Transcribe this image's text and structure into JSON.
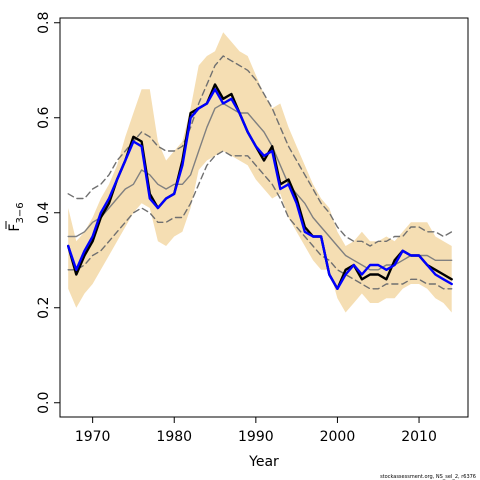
{
  "chart_data": {
    "type": "line",
    "xlabel": "Year",
    "ylabel": "F",
    "ylabel_subscript": "3−6",
    "x_ticks": [
      1970,
      1980,
      1990,
      2000,
      2010
    ],
    "y_ticks": [
      "0.0",
      "0.2",
      "0.4",
      "0.6",
      "0.8"
    ],
    "xlim": [
      1966,
      2016
    ],
    "ylim": [
      -0.03,
      0.81
    ],
    "grid": false,
    "legend": "none",
    "credit": "stockassessment.org, NS_sel_2, r6376",
    "years": [
      1967,
      1968,
      1969,
      1970,
      1971,
      1972,
      1973,
      1974,
      1975,
      1976,
      1977,
      1978,
      1979,
      1980,
      1981,
      1982,
      1983,
      1984,
      1985,
      1986,
      1987,
      1988,
      1989,
      1990,
      1991,
      1992,
      1993,
      1994,
      1995,
      1996,
      1997,
      1998,
      1999,
      2000,
      2001,
      2002,
      2003,
      2004,
      2005,
      2006,
      2007,
      2008,
      2009,
      2010,
      2011,
      2012,
      2013,
      2014
    ],
    "band": {
      "color": "#f5deb3",
      "upper": [
        0.41,
        0.34,
        0.36,
        0.39,
        0.43,
        0.46,
        0.5,
        0.56,
        0.61,
        0.66,
        0.66,
        0.55,
        0.51,
        0.53,
        0.55,
        0.62,
        0.71,
        0.73,
        0.74,
        0.78,
        0.76,
        0.74,
        0.73,
        0.69,
        0.65,
        0.62,
        0.63,
        0.58,
        0.54,
        0.5,
        0.46,
        0.43,
        0.41,
        0.36,
        0.33,
        0.34,
        0.36,
        0.34,
        0.34,
        0.35,
        0.34,
        0.36,
        0.38,
        0.38,
        0.38,
        0.35,
        0.34,
        0.33
      ],
      "lower": [
        0.24,
        0.2,
        0.23,
        0.25,
        0.28,
        0.31,
        0.34,
        0.37,
        0.4,
        0.42,
        0.41,
        0.34,
        0.33,
        0.35,
        0.36,
        0.41,
        0.49,
        0.51,
        0.52,
        0.53,
        0.52,
        0.51,
        0.5,
        0.47,
        0.45,
        0.43,
        0.44,
        0.39,
        0.36,
        0.33,
        0.3,
        0.28,
        0.28,
        0.22,
        0.19,
        0.21,
        0.23,
        0.21,
        0.21,
        0.22,
        0.22,
        0.24,
        0.25,
        0.25,
        0.24,
        0.22,
        0.21,
        0.19
      ]
    },
    "series": [
      {
        "color": "#000000",
        "width": 2.4,
        "dash": "",
        "values": [
          0.33,
          0.27,
          0.31,
          0.34,
          0.39,
          0.42,
          0.47,
          0.51,
          0.56,
          0.55,
          0.44,
          0.41,
          0.43,
          0.44,
          0.51,
          0.61,
          0.62,
          0.63,
          0.67,
          0.64,
          0.65,
          0.61,
          0.57,
          0.54,
          0.51,
          0.54,
          0.46,
          0.47,
          0.43,
          0.37,
          0.35,
          0.35,
          0.27,
          0.24,
          0.28,
          0.29,
          0.26,
          0.27,
          0.27,
          0.26,
          0.3,
          0.32,
          0.31,
          0.31,
          0.29,
          0.28,
          0.27,
          0.26
        ]
      },
      {
        "color": "#0000ff",
        "width": 2.4,
        "dash": "",
        "values": [
          0.33,
          0.28,
          0.32,
          0.35,
          0.4,
          0.43,
          0.47,
          0.51,
          0.55,
          0.54,
          0.43,
          0.41,
          0.43,
          0.44,
          0.5,
          0.6,
          0.62,
          0.63,
          0.66,
          0.63,
          0.64,
          0.61,
          0.57,
          0.54,
          0.52,
          0.53,
          0.45,
          0.46,
          0.42,
          0.36,
          0.35,
          0.35,
          0.27,
          0.24,
          0.27,
          0.29,
          0.27,
          0.29,
          0.29,
          0.28,
          0.29,
          0.32,
          0.31,
          0.31,
          0.29,
          0.27,
          0.26,
          0.25
        ]
      },
      {
        "color": "#808080",
        "width": 1.4,
        "dash": "",
        "values": [
          0.35,
          0.35,
          0.36,
          0.38,
          0.39,
          0.41,
          0.43,
          0.45,
          0.46,
          0.49,
          0.48,
          0.46,
          0.45,
          0.46,
          0.46,
          0.48,
          0.53,
          0.58,
          0.62,
          0.63,
          0.62,
          0.61,
          0.61,
          0.59,
          0.57,
          0.54,
          0.5,
          0.46,
          0.44,
          0.42,
          0.39,
          0.37,
          0.35,
          0.33,
          0.31,
          0.3,
          0.29,
          0.28,
          0.28,
          0.29,
          0.29,
          0.3,
          0.31,
          0.31,
          0.31,
          0.3,
          0.3,
          0.3
        ]
      },
      {
        "color": "#707070",
        "width": 1.4,
        "dash": "6,4",
        "values": [
          0.44,
          0.43,
          0.43,
          0.45,
          0.46,
          0.48,
          0.51,
          0.53,
          0.55,
          0.57,
          0.56,
          0.54,
          0.53,
          0.53,
          0.54,
          0.58,
          0.63,
          0.67,
          0.71,
          0.73,
          0.72,
          0.71,
          0.7,
          0.68,
          0.65,
          0.62,
          0.58,
          0.54,
          0.51,
          0.48,
          0.45,
          0.42,
          0.4,
          0.37,
          0.35,
          0.34,
          0.34,
          0.33,
          0.34,
          0.34,
          0.35,
          0.35,
          0.37,
          0.37,
          0.36,
          0.36,
          0.35,
          0.36
        ]
      },
      {
        "color": "#707070",
        "width": 1.4,
        "dash": "6,4",
        "values": [
          0.28,
          0.28,
          0.29,
          0.31,
          0.32,
          0.34,
          0.36,
          0.38,
          0.4,
          0.41,
          0.4,
          0.38,
          0.38,
          0.39,
          0.39,
          0.42,
          0.46,
          0.5,
          0.52,
          0.53,
          0.52,
          0.52,
          0.52,
          0.5,
          0.48,
          0.46,
          0.43,
          0.39,
          0.37,
          0.35,
          0.33,
          0.31,
          0.3,
          0.28,
          0.27,
          0.26,
          0.25,
          0.24,
          0.24,
          0.25,
          0.25,
          0.25,
          0.26,
          0.26,
          0.25,
          0.25,
          0.24,
          0.24
        ]
      }
    ]
  }
}
